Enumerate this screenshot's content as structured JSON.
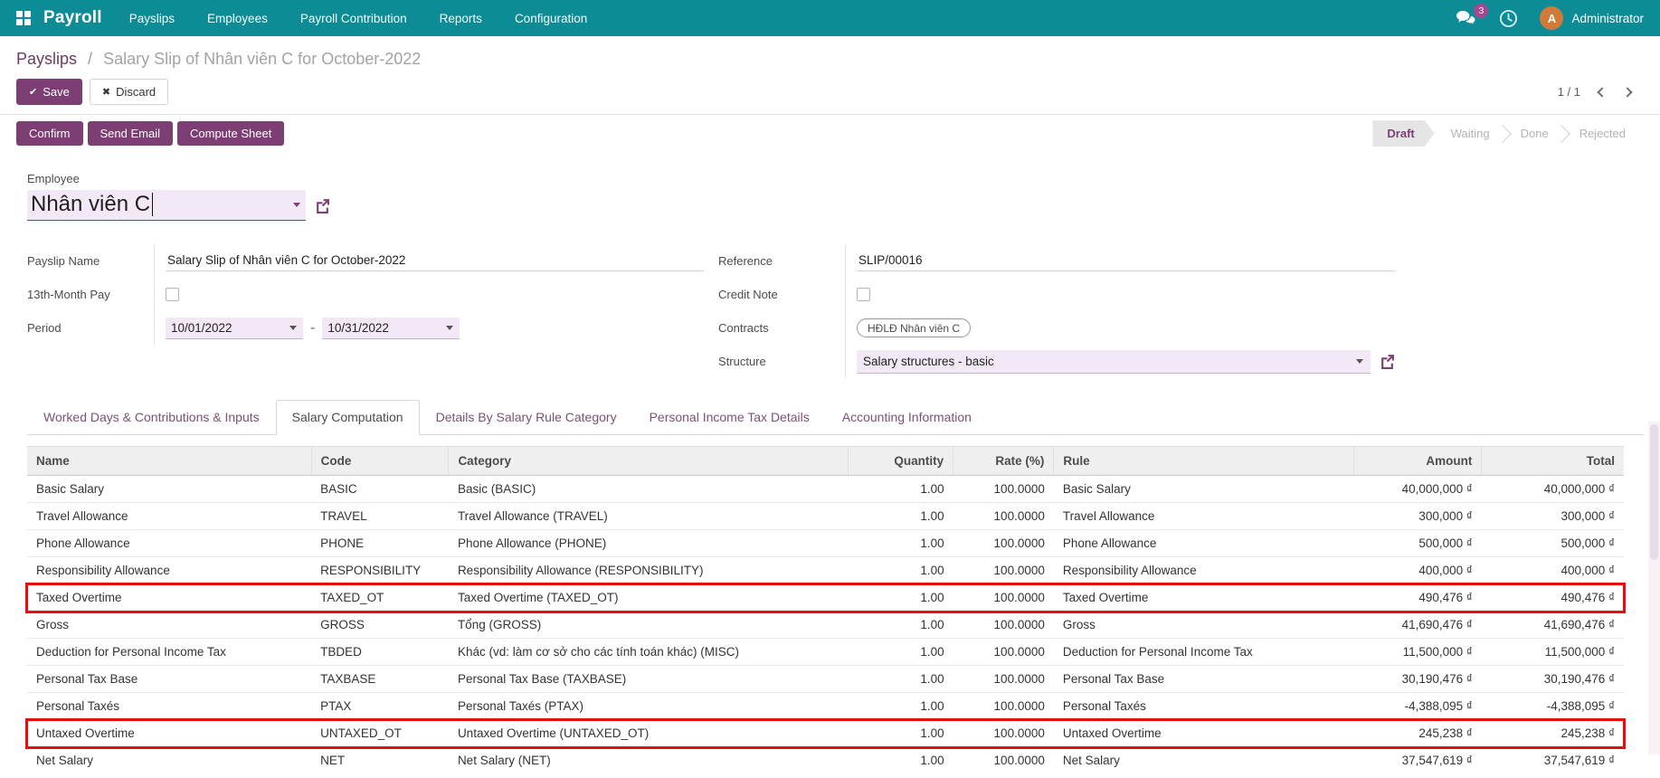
{
  "navbar": {
    "app_name": "Payroll",
    "menus": [
      "Payslips",
      "Employees",
      "Payroll Contribution",
      "Reports",
      "Configuration"
    ],
    "messages_badge": "3",
    "user_initial": "A",
    "user_name": "Administrator"
  },
  "breadcrumb": {
    "parent": "Payslips",
    "separator": "/",
    "current": "Salary Slip of Nhân viên C for October-2022"
  },
  "control": {
    "save_label": "Save",
    "save_icon": "✔",
    "discard_label": "Discard",
    "discard_icon": "✖",
    "pager": "1 / 1"
  },
  "statusbar": {
    "buttons": [
      "Confirm",
      "Send Email",
      "Compute Sheet"
    ],
    "steps": [
      {
        "label": "Draft",
        "active": true
      },
      {
        "label": "Waiting",
        "active": false
      },
      {
        "label": "Done",
        "active": false
      },
      {
        "label": "Rejected",
        "active": false
      }
    ]
  },
  "form": {
    "employee": {
      "label": "Employee",
      "value": "Nhân viên C"
    },
    "left_fields": [
      {
        "label": "Payslip Name",
        "value": "Salary Slip of Nhân viên C for October-2022"
      },
      {
        "label": "13th-Month Pay",
        "checked": false
      },
      {
        "label": "Period",
        "start": "10/01/2022",
        "range_separator": "-",
        "end": "10/31/2022"
      }
    ],
    "right_fields": [
      {
        "label": "Reference",
        "value": "SLIP/00016"
      },
      {
        "label": "Credit Note",
        "checked": false
      },
      {
        "label": "Contracts",
        "value": "HĐLĐ Nhân viên C"
      },
      {
        "label": "Structure",
        "value": "Salary structures - basic"
      }
    ]
  },
  "tabs": [
    {
      "label": "Worked Days & Contributions & Inputs",
      "active": false
    },
    {
      "label": "Salary Computation",
      "active": true
    },
    {
      "label": "Details By Salary Rule Category",
      "active": false
    },
    {
      "label": "Personal Income Tax Details",
      "active": false
    },
    {
      "label": "Accounting Information",
      "active": false
    }
  ],
  "table": {
    "columns": [
      {
        "label": "Name",
        "align": "left"
      },
      {
        "label": "Code",
        "align": "left"
      },
      {
        "label": "Category",
        "align": "left"
      },
      {
        "label": "Quantity",
        "align": "right"
      },
      {
        "label": "Rate (%)",
        "align": "right"
      },
      {
        "label": "Rule",
        "align": "left"
      },
      {
        "label": "Amount",
        "align": "right"
      },
      {
        "label": "Total",
        "align": "right"
      }
    ],
    "rows": [
      {
        "highlighted": false,
        "cells": [
          "Basic Salary",
          "BASIC",
          "Basic (BASIC)",
          "1.00",
          "100.0000",
          "Basic Salary",
          "40,000,000 ₫",
          "40,000,000 ₫"
        ]
      },
      {
        "highlighted": false,
        "cells": [
          "Travel Allowance",
          "TRAVEL",
          "Travel Allowance (TRAVEL)",
          "1.00",
          "100.0000",
          "Travel Allowance",
          "300,000 ₫",
          "300,000 ₫"
        ]
      },
      {
        "highlighted": false,
        "cells": [
          "Phone Allowance",
          "PHONE",
          "Phone Allowance (PHONE)",
          "1.00",
          "100.0000",
          "Phone Allowance",
          "500,000 ₫",
          "500,000 ₫"
        ]
      },
      {
        "highlighted": false,
        "cells": [
          "Responsibility Allowance",
          "RESPONSIBILITY",
          "Responsibility Allowance (RESPONSIBILITY)",
          "1.00",
          "100.0000",
          "Responsibility Allowance",
          "400,000 ₫",
          "400,000 ₫"
        ]
      },
      {
        "highlighted": true,
        "cells": [
          "Taxed Overtime",
          "TAXED_OT",
          "Taxed Overtime (TAXED_OT)",
          "1.00",
          "100.0000",
          "Taxed Overtime",
          "490,476 ₫",
          "490,476 ₫"
        ]
      },
      {
        "highlighted": false,
        "cells": [
          "Gross",
          "GROSS",
          "Tổng (GROSS)",
          "1.00",
          "100.0000",
          "Gross",
          "41,690,476 ₫",
          "41,690,476 ₫"
        ]
      },
      {
        "highlighted": false,
        "cells": [
          "Deduction for Personal Income Tax",
          "TBDED",
          "Khác (vd: làm cơ sở cho các tính toán khác) (MISC)",
          "1.00",
          "100.0000",
          "Deduction for Personal Income Tax",
          "11,500,000 ₫",
          "11,500,000 ₫"
        ]
      },
      {
        "highlighted": false,
        "cells": [
          "Personal Tax Base",
          "TAXBASE",
          "Personal Tax Base (TAXBASE)",
          "1.00",
          "100.0000",
          "Personal Tax Base",
          "30,190,476 ₫",
          "30,190,476 ₫"
        ]
      },
      {
        "highlighted": false,
        "cells": [
          "Personal Taxés",
          "PTAX",
          "Personal Taxés (PTAX)",
          "1.00",
          "100.0000",
          "Personal Taxés",
          "-4,388,095 ₫",
          "-4,388,095 ₫"
        ]
      },
      {
        "highlighted": true,
        "cells": [
          "Untaxed Overtime",
          "UNTAXED_OT",
          "Untaxed Overtime (UNTAXED_OT)",
          "1.00",
          "100.0000",
          "Untaxed Overtime",
          "245,238 ₫",
          "245,238 ₫"
        ]
      },
      {
        "highlighted": false,
        "cells": [
          "Net Salary",
          "NET",
          "Net Salary (NET)",
          "1.00",
          "100.0000",
          "Net Salary",
          "37,547,619 ₫",
          "37,547,619 ₫"
        ]
      }
    ]
  },
  "colors": {
    "navbar_teal": "#0d8c96",
    "primary_purple": "#7c3e73",
    "input_lavender": "#f3e9f6",
    "highlight_red": "#e50d0d",
    "badge_magenta": "#a8468f",
    "avatar_orange": "#cf7a38"
  }
}
